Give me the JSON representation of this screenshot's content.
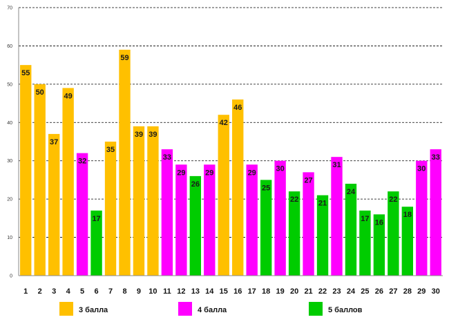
{
  "chart_data": {
    "type": "bar",
    "title": "",
    "xlabel": "",
    "ylabel": "",
    "ylim": [
      0,
      70
    ],
    "yticks": [
      0,
      10,
      20,
      30,
      40,
      50,
      60,
      70
    ],
    "grid": true,
    "categories": [
      "1",
      "2",
      "3",
      "4",
      "5",
      "6",
      "7",
      "8",
      "9",
      "10",
      "11",
      "12",
      "13",
      "14",
      "15",
      "16",
      "17",
      "18",
      "19",
      "20",
      "21",
      "22",
      "23",
      "24",
      "25",
      "26",
      "27",
      "28",
      "29",
      "30"
    ],
    "values": [
      55,
      50,
      37,
      49,
      32,
      17,
      35,
      59,
      39,
      39,
      33,
      29,
      26,
      29,
      42,
      46,
      29,
      25,
      30,
      22,
      27,
      21,
      31,
      24,
      17,
      16,
      22,
      18,
      30,
      33
    ],
    "groups": [
      "g3",
      "g3",
      "g3",
      "g3",
      "g4",
      "g5",
      "g3",
      "g3",
      "g3",
      "g3",
      "g4",
      "g4",
      "g5",
      "g4",
      "g3",
      "g3",
      "g4",
      "g5",
      "g4",
      "g5",
      "g4",
      "g5",
      "g4",
      "g5",
      "g5",
      "g5",
      "g5",
      "g5",
      "g4",
      "g4"
    ],
    "legend": [
      {
        "key": "g3",
        "label": "3 балла",
        "color": "#FFC000"
      },
      {
        "key": "g4",
        "label": "4 балла",
        "color": "#FF00FF"
      },
      {
        "key": "g5",
        "label": "5 баллов",
        "color": "#00CC00"
      }
    ],
    "legend_position": "bottom"
  }
}
